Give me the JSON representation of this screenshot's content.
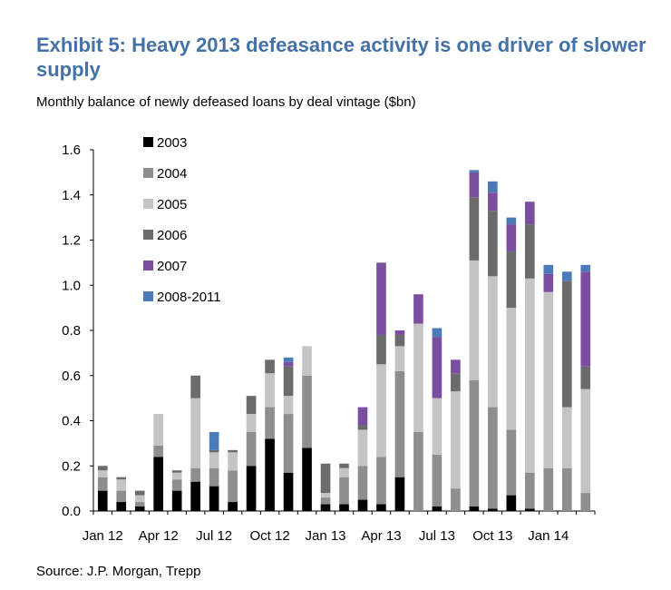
{
  "title": "Exhibit 5: Heavy 2013 defeasance activity is one driver of slower supply",
  "subtitle": "Monthly balance of newly defeased loans by deal vintage ($bn)",
  "source": "Source: J.P. Morgan, Trepp",
  "colors": {
    "title": "#4472a8",
    "2003": "#000000",
    "2004": "#8e8e8e",
    "2005": "#c4c4c4",
    "2006": "#6b6b6b",
    "2007": "#7b4fa0",
    "2008-2011": "#4a7ab8"
  },
  "chart_data": {
    "type": "bar",
    "stacked": true,
    "categories": [
      "Jan 12",
      "Feb 12",
      "Mar 12",
      "Apr 12",
      "May 12",
      "Jun 12",
      "Jul 12",
      "Aug 12",
      "Sep 12",
      "Oct 12",
      "Nov 12",
      "Dec 12",
      "Jan 13",
      "Feb 13",
      "Mar 13",
      "Apr 13",
      "May 13",
      "Jun 13",
      "Jul 13",
      "Aug 13",
      "Sep 13",
      "Oct 13",
      "Nov 13",
      "Dec 13",
      "Jan 14",
      "Feb 14",
      "Mar 14"
    ],
    "x_tick_labels": [
      "Jan 12",
      "Apr 12",
      "Jul 12",
      "Oct 12",
      "Jan 13",
      "Apr 13",
      "Jul 13",
      "Oct 13",
      "Jan 14"
    ],
    "x_tick_indices": [
      0,
      3,
      6,
      9,
      12,
      15,
      18,
      21,
      24
    ],
    "ylim": [
      0,
      1.6
    ],
    "y_ticks": [
      "0.0",
      "0.2",
      "0.4",
      "0.6",
      "0.8",
      "1.0",
      "1.2",
      "1.4",
      "1.6"
    ],
    "legend_position": "top-left",
    "series": [
      {
        "name": "2003",
        "values": [
          0.09,
          0.04,
          0.02,
          0.24,
          0.09,
          0.13,
          0.11,
          0.04,
          0.2,
          0.32,
          0.17,
          0.28,
          0.03,
          0.03,
          0.05,
          0.03,
          0.15,
          0.0,
          0.02,
          0.0,
          0.02,
          0.01,
          0.07,
          0.01,
          0.0,
          0.0,
          0.0
        ]
      },
      {
        "name": "2004",
        "values": [
          0.06,
          0.05,
          0.02,
          0.05,
          0.05,
          0.06,
          0.08,
          0.14,
          0.15,
          0.14,
          0.26,
          0.32,
          0.03,
          0.12,
          0.15,
          0.21,
          0.47,
          0.35,
          0.23,
          0.1,
          0.56,
          0.45,
          0.29,
          0.16,
          0.19,
          0.19,
          0.08
        ]
      },
      {
        "name": "2005",
        "values": [
          0.03,
          0.05,
          0.03,
          0.14,
          0.03,
          0.31,
          0.07,
          0.08,
          0.08,
          0.15,
          0.08,
          0.13,
          0.02,
          0.04,
          0.16,
          0.41,
          0.11,
          0.48,
          0.25,
          0.43,
          0.53,
          0.58,
          0.54,
          0.86,
          0.78,
          0.27,
          0.46
        ]
      },
      {
        "name": "2006",
        "values": [
          0.02,
          0.01,
          0.02,
          0.0,
          0.01,
          0.1,
          0.01,
          0.01,
          0.08,
          0.06,
          0.13,
          0.0,
          0.13,
          0.02,
          0.02,
          0.13,
          0.05,
          0.0,
          0.0,
          0.08,
          0.28,
          0.29,
          0.25,
          0.24,
          0.0,
          0.56,
          0.1
        ]
      },
      {
        "name": "2007",
        "values": [
          0.0,
          0.0,
          0.0,
          0.0,
          0.0,
          0.0,
          0.0,
          0.0,
          0.0,
          0.0,
          0.02,
          0.0,
          0.0,
          0.0,
          0.08,
          0.32,
          0.02,
          0.13,
          0.27,
          0.06,
          0.11,
          0.08,
          0.12,
          0.1,
          0.08,
          0.0,
          0.42
        ]
      },
      {
        "name": "2008-2011",
        "values": [
          0.0,
          0.0,
          0.0,
          0.0,
          0.0,
          0.0,
          0.08,
          0.0,
          0.0,
          0.0,
          0.02,
          0.0,
          0.0,
          0.0,
          0.0,
          0.0,
          0.0,
          0.0,
          0.04,
          0.0,
          0.01,
          0.05,
          0.03,
          0.0,
          0.04,
          0.04,
          0.03
        ]
      }
    ]
  }
}
